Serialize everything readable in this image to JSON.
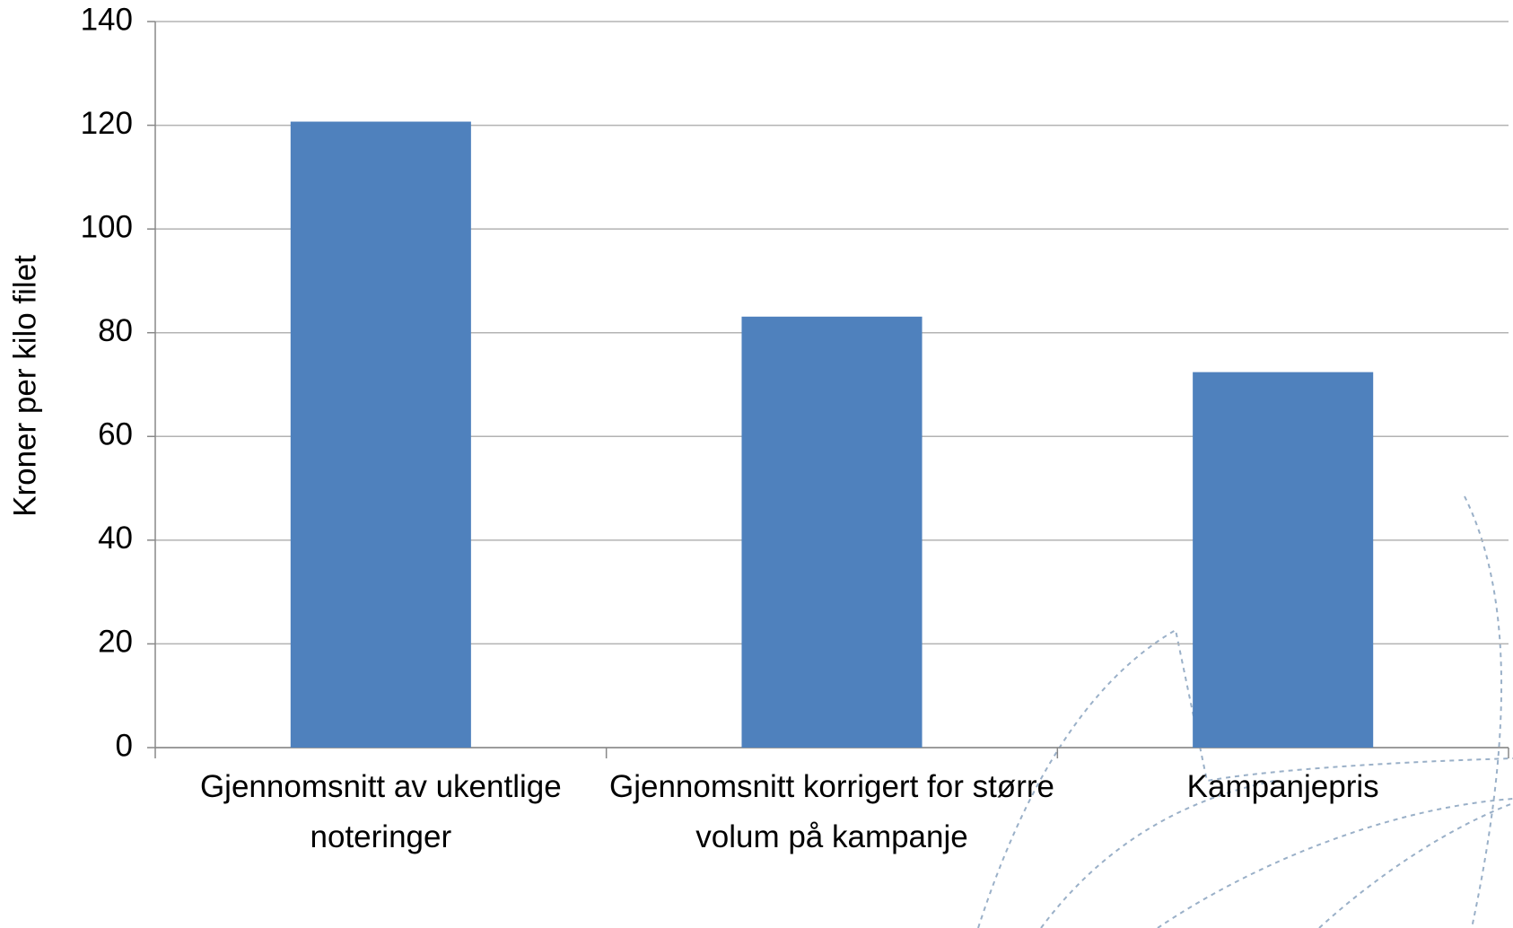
{
  "chart_data": {
    "type": "bar",
    "y_label": "Kroner per kilo filet",
    "categories": [
      "Gjennomsnitt av ukentlige noteringer",
      "Gjennomsnitt korrigert for større volum på kampanje",
      "Kampanjepris"
    ],
    "values": [
      120.7,
      83.1,
      72.4
    ],
    "color": "#4f81bd",
    "ylim": [
      0,
      140
    ],
    "yticks": [
      0,
      20,
      40,
      60,
      80,
      100,
      120,
      140
    ],
    "grid": true
  }
}
